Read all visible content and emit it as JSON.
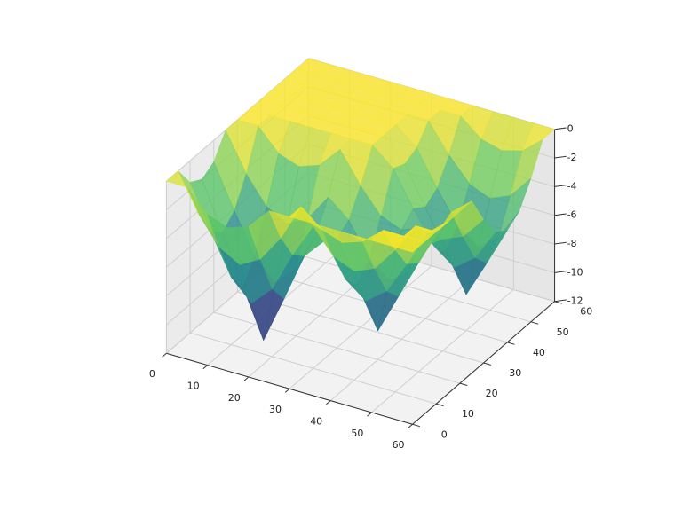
{
  "chart_data": {
    "type": "surface",
    "x": [
      0,
      5,
      10,
      15,
      20,
      25,
      30,
      35,
      40,
      45,
      50,
      55,
      60
    ],
    "y": [
      0,
      5,
      10,
      15,
      20,
      25,
      30,
      35,
      40,
      45,
      50,
      55,
      60
    ],
    "z": [
      [
        0,
        0,
        -1.5,
        -2,
        -1.5,
        0,
        0,
        0,
        0,
        0,
        0,
        0,
        0
      ],
      [
        0,
        -2.6,
        -4.5,
        -5.3,
        -4.5,
        -2.6,
        0,
        -1.2,
        -1.7,
        -1.2,
        0,
        0,
        0
      ],
      [
        -1.5,
        -4.5,
        -7.3,
        -8.7,
        -7.3,
        -4.5,
        -2.1,
        -3.8,
        -4.4,
        -3.8,
        -2.1,
        0,
        0
      ],
      [
        -2,
        -5.3,
        -8.7,
        -12,
        -8.7,
        -5.3,
        -3.8,
        -6.1,
        -7.2,
        -6.1,
        -3.8,
        -1.2,
        0
      ],
      [
        -1.5,
        -4.5,
        -7.3,
        -8.7,
        -7.3,
        -4.5,
        -4.4,
        -7.2,
        -10,
        -7.2,
        -4.4,
        -1.7,
        0
      ],
      [
        0,
        -2.6,
        -4.5,
        -5.3,
        -4.5,
        -2.6,
        -3.8,
        -6.1,
        -7.2,
        -6.1,
        -3.8,
        -1.2,
        0
      ],
      [
        0,
        0,
        -1.5,
        -2,
        -1.5,
        0,
        -2.1,
        -3.8,
        -4.4,
        -3.8,
        -4.2,
        -3.6,
        -2
      ],
      [
        0,
        0,
        0,
        0,
        0,
        0,
        0,
        -1.2,
        -3.6,
        -5.8,
        -6.9,
        -5.8,
        -3.6
      ],
      [
        0,
        0,
        0,
        0,
        0,
        0,
        0,
        -1.6,
        -4.2,
        -6.9,
        -9.5,
        -6.9,
        -4.2
      ],
      [
        0,
        0,
        0,
        0,
        0,
        0,
        0,
        -1.2,
        -3.6,
        -5.8,
        -6.9,
        -5.8,
        -3.6
      ],
      [
        0,
        0,
        0,
        0,
        0,
        0,
        0,
        0,
        -2,
        -3.6,
        -4.2,
        -3.6,
        -2
      ],
      [
        0,
        0,
        0,
        0,
        0,
        0,
        0,
        0,
        0,
        -1.2,
        -1.6,
        -1.2,
        0
      ],
      [
        0,
        0,
        0,
        0,
        0,
        0,
        0,
        0,
        0,
        0,
        0,
        0,
        0
      ]
    ],
    "xlim": [
      0,
      60
    ],
    "ylim": [
      0,
      60
    ],
    "zlim": [
      -12,
      0
    ],
    "xticks": [
      0,
      10,
      20,
      30,
      40,
      50,
      60
    ],
    "yticks": [
      0,
      10,
      20,
      30,
      40,
      50,
      60
    ],
    "zticks": [
      -12,
      -10,
      -8,
      -6,
      -4,
      -2,
      0
    ],
    "colormap": "viridis",
    "grid": true
  }
}
